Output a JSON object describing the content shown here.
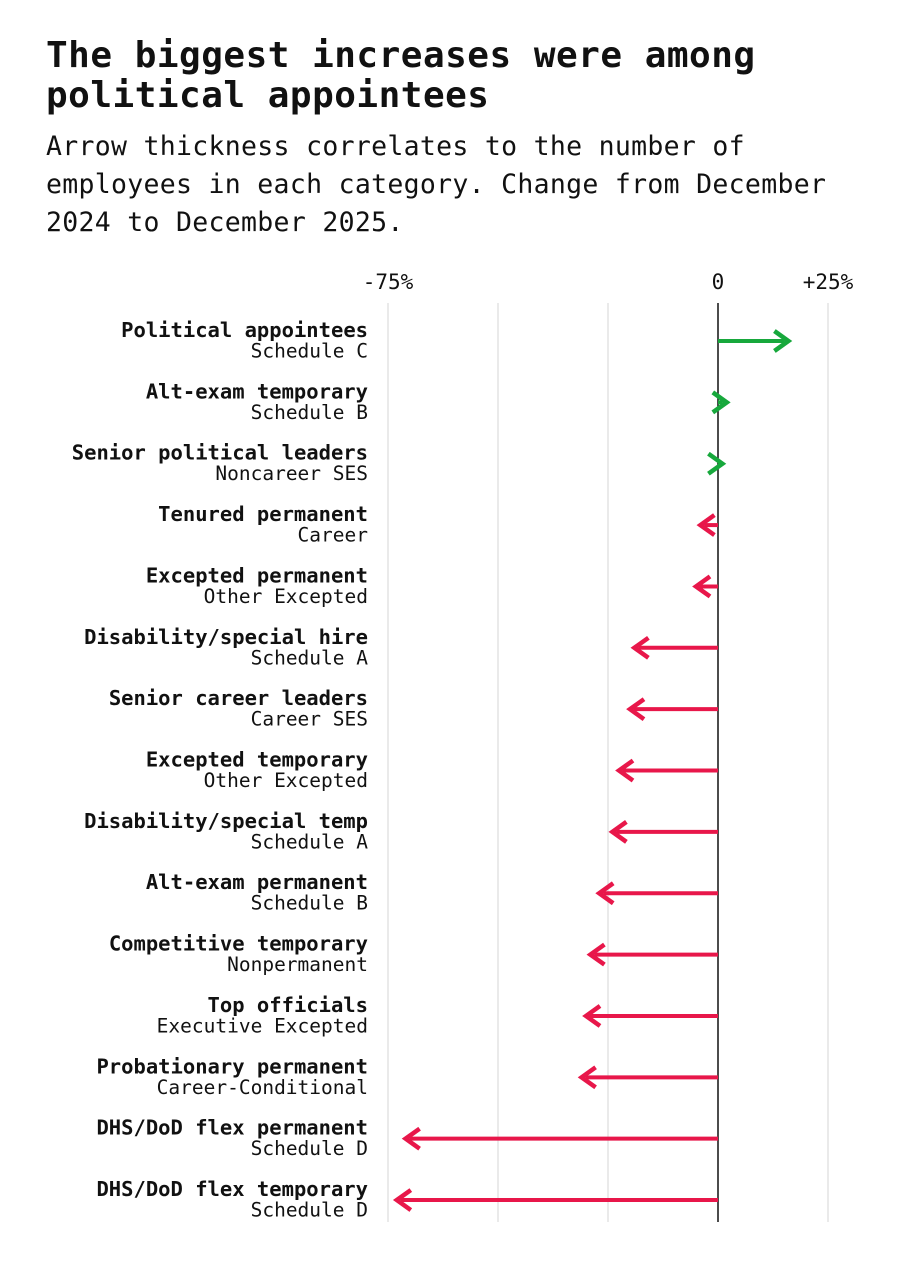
{
  "chart_data": {
    "type": "arrow",
    "title": "The biggest increases were among political appointees",
    "subtitle": "Arrow thickness correlates to the number of employees in each category. Change from December 2024 to December 2025.",
    "categories": [
      "Political appointees",
      "Alt-exam temporary",
      "Senior political leaders",
      "Tenured permanent",
      "Excepted permanent",
      "Disability/special hire",
      "Senior career leaders",
      "Excepted temporary",
      "Disability/special temp",
      "Alt-exam permanent",
      "Competitive temporary",
      "Top officials",
      "Probationary permanent",
      "DHS/DoD flex permanent",
      "DHS/DoD flex temporary"
    ],
    "subcategories": [
      "Schedule C",
      "Schedule B",
      "Noncareer SES",
      "Career",
      "Other Excepted",
      "Schedule A",
      "Career SES",
      "Other Excepted",
      "Schedule A",
      "Schedule B",
      "Nonpermanent",
      "Executive Excepted",
      "Career-Conditional",
      "Schedule D",
      "Schedule D"
    ],
    "values": [
      16,
      2,
      1,
      -4,
      -5,
      -19,
      -20,
      -22.5,
      -24,
      -27,
      -29,
      -30,
      -31,
      -71,
      -73
    ],
    "xlim": [
      -75,
      25
    ],
    "xticks": [
      {
        "value": -75,
        "label": "-75%"
      },
      0,
      {
        "value": 25,
        "label": "+25%"
      }
    ],
    "gridlines": [
      -75,
      -50,
      -25,
      0,
      25
    ],
    "positive_color": "#17a83c",
    "negative_color": "#e8174a"
  }
}
